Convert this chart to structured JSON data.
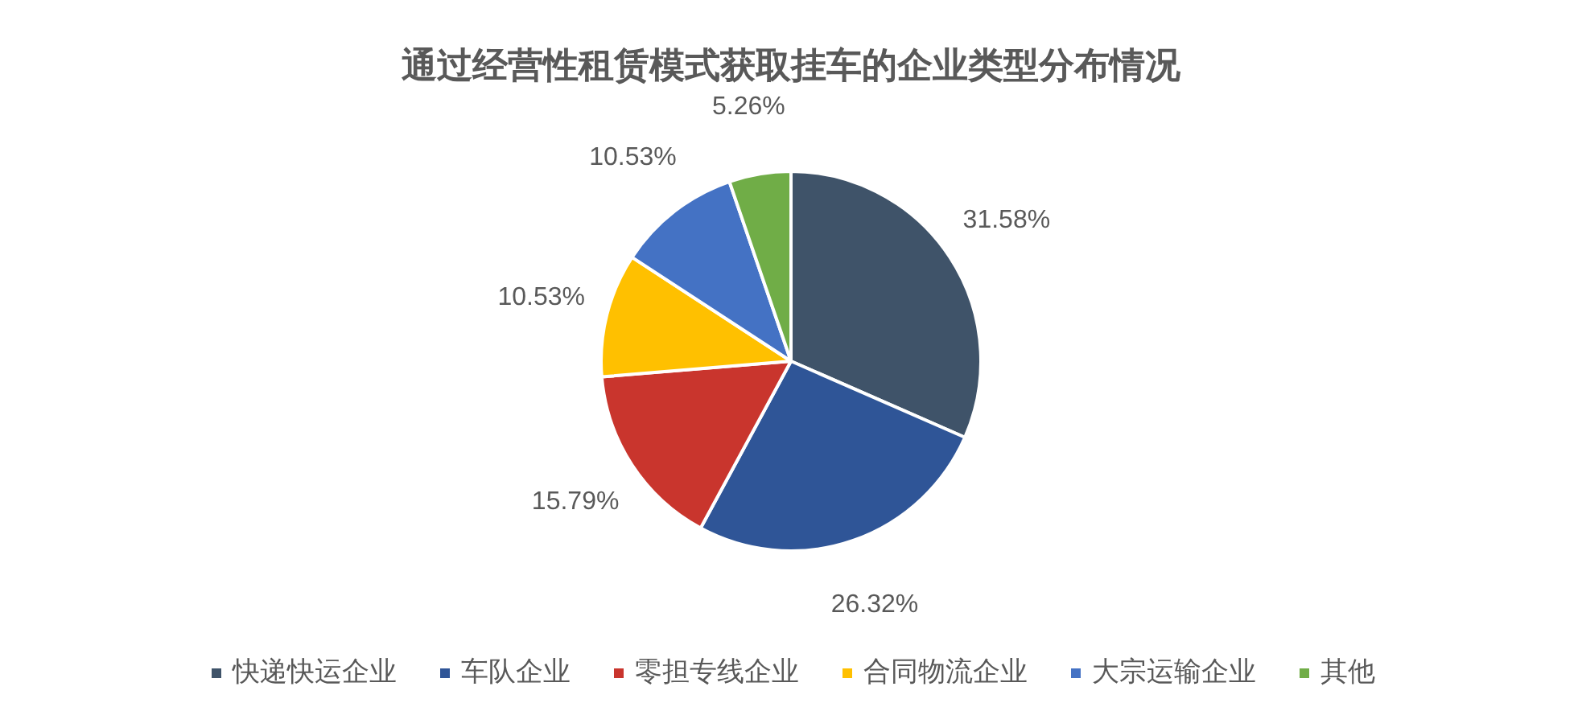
{
  "chart_data": {
    "type": "pie",
    "title": "通过经营性租赁模式获取挂车的企业类型分布情况",
    "categories": [
      "快递快运企业",
      "车队企业",
      "零担专线企业",
      "合同物流企业",
      "大宗运输企业",
      "其他"
    ],
    "values": [
      31.58,
      26.32,
      15.79,
      10.53,
      10.53,
      5.26
    ],
    "colors": [
      "#3f5369",
      "#2f5597",
      "#c9352d",
      "#ffc000",
      "#4472c4",
      "#70ad47"
    ],
    "value_labels": [
      "31.58%",
      "26.32%",
      "15.79%",
      "10.53%",
      "10.53%",
      "5.26%"
    ],
    "legend": "bottom"
  }
}
